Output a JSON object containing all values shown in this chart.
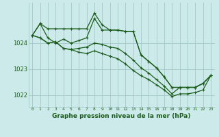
{
  "bg_color": "#cdeaea",
  "grid_color": "#a8cccc",
  "line_color": "#1a5c1a",
  "title": "Graphe pression niveau de la mer (hPa)",
  "xlim": [
    -0.5,
    23.5
  ],
  "ylim": [
    1021.55,
    1025.55
  ],
  "yticks": [
    1022,
    1023,
    1024
  ],
  "xticks": [
    0,
    1,
    2,
    3,
    4,
    5,
    6,
    7,
    8,
    9,
    10,
    11,
    12,
    13,
    14,
    15,
    16,
    17,
    18,
    19,
    20,
    21,
    22,
    23
  ],
  "series": [
    [
      1024.3,
      1024.75,
      1024.55,
      1024.55,
      1024.55,
      1024.55,
      1024.55,
      1024.55,
      1025.15,
      1024.7,
      1024.5,
      1024.5,
      1024.45,
      1024.45,
      1023.55,
      1023.3,
      1023.05,
      1022.7,
      1022.3,
      1022.3,
      1022.3,
      1022.3,
      1022.45,
      1022.75
    ],
    [
      1024.3,
      1024.75,
      1024.2,
      1024.0,
      1024.15,
      1024.0,
      1024.1,
      1024.2,
      1024.95,
      1024.5,
      1024.5,
      1024.5,
      1024.45,
      1024.45,
      1023.55,
      1023.3,
      1023.05,
      1022.7,
      1022.3,
      1022.3,
      1022.3,
      1022.3,
      1022.45,
      1022.75
    ],
    [
      1024.3,
      1024.2,
      1024.0,
      1024.05,
      1023.8,
      1023.75,
      1023.8,
      1023.85,
      1024.0,
      1023.95,
      1023.85,
      1023.8,
      1023.6,
      1023.35,
      1023.05,
      1022.85,
      1022.6,
      1022.35,
      1022.05,
      1022.3,
      1022.3,
      1022.3,
      1022.45,
      1022.75
    ],
    [
      1024.3,
      1024.2,
      1024.0,
      1024.05,
      1023.8,
      1023.75,
      1023.65,
      1023.6,
      1023.7,
      1023.6,
      1023.5,
      1023.4,
      1023.2,
      1022.95,
      1022.75,
      1022.6,
      1022.4,
      1022.2,
      1021.95,
      1022.05,
      1022.05,
      1022.1,
      1022.2,
      1022.75
    ]
  ]
}
